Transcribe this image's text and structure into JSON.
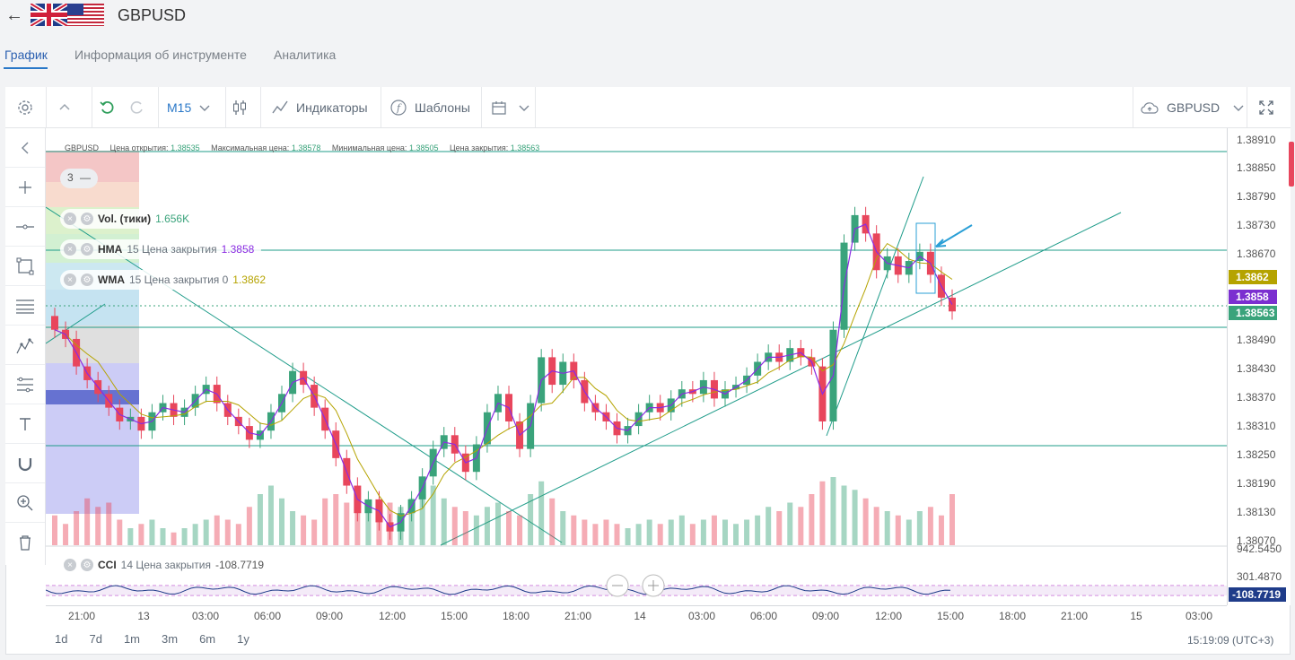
{
  "header": {
    "title": "GBPUSD",
    "back_icon": "arrow-left-icon",
    "flag_icon": "uk-us-flag-icon"
  },
  "tabs": [
    {
      "label": "График",
      "active": true
    },
    {
      "label": "Информация об инструменте",
      "active": false
    },
    {
      "label": "Аналитика",
      "active": false
    }
  ],
  "toolbar": {
    "timeframe": "M15",
    "indicators_label": "Индикаторы",
    "templates_label": "Шаблоны",
    "symbol": "GBPUSD"
  },
  "info_line": {
    "symbol": "GBPUSD",
    "open_label": "Цена открытия:",
    "open_value": "1.38535",
    "high_label": "Максимальная цена:",
    "high_value": "1.38578",
    "low_label": "Минимальная цена:",
    "low_value": "1.38505",
    "close_label": "Цена закрытия:",
    "close_value": "1.38563"
  },
  "legend": {
    "count": "3",
    "count_icon": "minus-icon",
    "vol": {
      "name": "Vol. (тики)",
      "params": "",
      "value": "1.656K",
      "color": "#3aa37b"
    },
    "hma": {
      "name": "HMA",
      "params": "15 Цена закрытия",
      "value": "1.3858",
      "color": "#8a2be2"
    },
    "wma": {
      "name": "WMA",
      "params": "15 Цена закрытия 0",
      "value": "1.3862",
      "color": "#b5a300"
    },
    "cci": {
      "name": "CCI",
      "params": "14 Цена закрытия",
      "value": "-108.7719"
    }
  },
  "price_axis": {
    "labels": [
      "1.38910",
      "1.38850",
      "1.38790",
      "1.38730",
      "1.38670",
      "1.38490",
      "1.38430",
      "1.38370",
      "1.38310",
      "1.38250",
      "1.38190",
      "1.38130",
      "1.38070"
    ],
    "tags": [
      {
        "value": "1.3862",
        "color": "#b5a300"
      },
      {
        "value": "1.3858",
        "color": "#7b2fd0"
      },
      {
        "value": "1.38563",
        "color": "#3aa37b"
      }
    ],
    "cci_labels": [
      "942.5450",
      "301.4870"
    ],
    "cci_tag": "-108.7719"
  },
  "time_axis": [
    "21:00",
    "13",
    "03:00",
    "06:00",
    "09:00",
    "12:00",
    "15:00",
    "18:00",
    "21:00",
    "14",
    "03:00",
    "06:00",
    "09:00",
    "12:00",
    "15:00",
    "18:00",
    "21:00",
    "15",
    "03:00"
  ],
  "periods": [
    "1d",
    "7d",
    "1m",
    "3m",
    "6m",
    "1y"
  ],
  "clock": "15:19:09 (UTC+3)",
  "colors": {
    "up": "#3aa37b",
    "down": "#e8465c",
    "accent": "#2a78c8"
  },
  "chart_data": {
    "type": "candlestick",
    "price_range": [
      1.3805,
      1.3894
    ],
    "close": [
      1.3852,
      1.385,
      1.3844,
      1.3841,
      1.3838,
      1.3835,
      1.3832,
      1.3833,
      1.383,
      1.3834,
      1.3836,
      1.3833,
      1.3835,
      1.3838,
      1.384,
      1.3836,
      1.3833,
      1.3831,
      1.3828,
      1.383,
      1.3834,
      1.3838,
      1.3843,
      1.384,
      1.3835,
      1.383,
      1.3824,
      1.3818,
      1.3812,
      1.3815,
      1.381,
      1.3808,
      1.3812,
      1.3815,
      1.382,
      1.3826,
      1.3829,
      1.3825,
      1.3821,
      1.3827,
      1.3834,
      1.3838,
      1.3832,
      1.3826,
      1.3836,
      1.3846,
      1.384,
      1.3845,
      1.3841,
      1.3836,
      1.3834,
      1.3832,
      1.3829,
      1.3831,
      1.3834,
      1.3836,
      1.3834,
      1.3837,
      1.3839,
      1.3838,
      1.3841,
      1.3837,
      1.3839,
      1.384,
      1.3842,
      1.3845,
      1.3847,
      1.3845,
      1.3848,
      1.3846,
      1.3844,
      1.3832,
      1.3852,
      1.3871,
      1.3877,
      1.3873,
      1.3865,
      1.3868,
      1.3864,
      1.3867,
      1.3869,
      1.3864,
      1.3859,
      1.3856
    ],
    "volume": [
      0.35,
      0.25,
      0.4,
      0.55,
      0.45,
      0.5,
      0.3,
      0.2,
      0.25,
      0.3,
      0.2,
      0.15,
      0.2,
      0.25,
      0.3,
      0.35,
      0.3,
      0.25,
      0.45,
      0.6,
      0.7,
      0.55,
      0.4,
      0.35,
      0.3,
      0.55,
      0.6,
      0.5,
      0.45,
      0.4,
      0.35,
      0.5,
      0.45,
      0.55,
      0.6,
      0.7,
      0.55,
      0.45,
      0.4,
      0.35,
      0.45,
      0.5,
      0.4,
      0.35,
      0.6,
      0.75,
      0.55,
      0.4,
      0.35,
      0.3,
      0.25,
      0.3,
      0.25,
      0.2,
      0.25,
      0.3,
      0.25,
      0.3,
      0.35,
      0.25,
      0.3,
      0.35,
      0.3,
      0.25,
      0.3,
      0.35,
      0.45,
      0.4,
      0.5,
      0.45,
      0.6,
      0.75,
      0.8,
      0.7,
      0.65,
      0.55,
      0.45,
      0.4,
      0.35,
      0.3,
      0.4,
      0.45,
      0.35,
      0.6
    ]
  }
}
